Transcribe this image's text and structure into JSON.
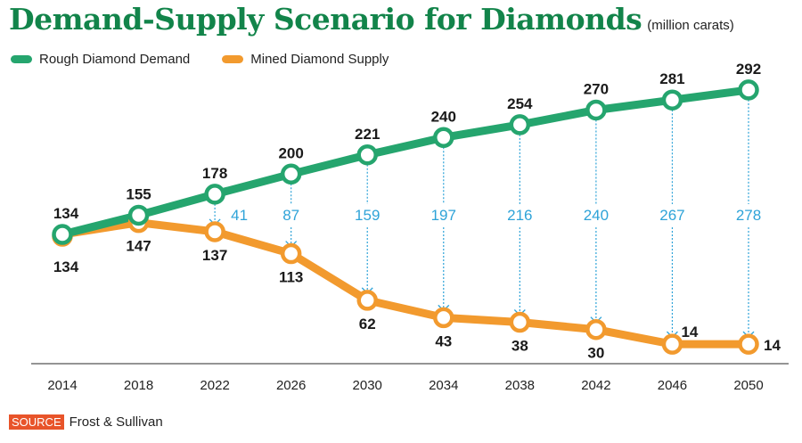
{
  "chart_data": {
    "type": "line",
    "title": "Demand-Supply Scenario for Diamonds",
    "units": "(million carats)",
    "xlabel": "",
    "ylabel": "",
    "x": [
      "2014",
      "2018",
      "2022",
      "2026",
      "2030",
      "2034",
      "2038",
      "2042",
      "2046",
      "2050"
    ],
    "series": [
      {
        "name": "Rough Diamond Demand",
        "color": "#25a56e",
        "values": [
          134,
          155,
          178,
          200,
          221,
          240,
          254,
          270,
          281,
          292
        ]
      },
      {
        "name": "Mined Diamond Supply",
        "color": "#f29a2e",
        "values": [
          134,
          147,
          137,
          113,
          62,
          43,
          38,
          30,
          14,
          14
        ]
      }
    ],
    "gap": {
      "color": "#2ea3d8",
      "values": [
        null,
        null,
        41,
        87,
        159,
        197,
        216,
        240,
        267,
        278
      ]
    },
    "grid": false,
    "legend": "top-left"
  },
  "source": {
    "label": "SOURCE",
    "text": "Frost & Sullivan"
  }
}
